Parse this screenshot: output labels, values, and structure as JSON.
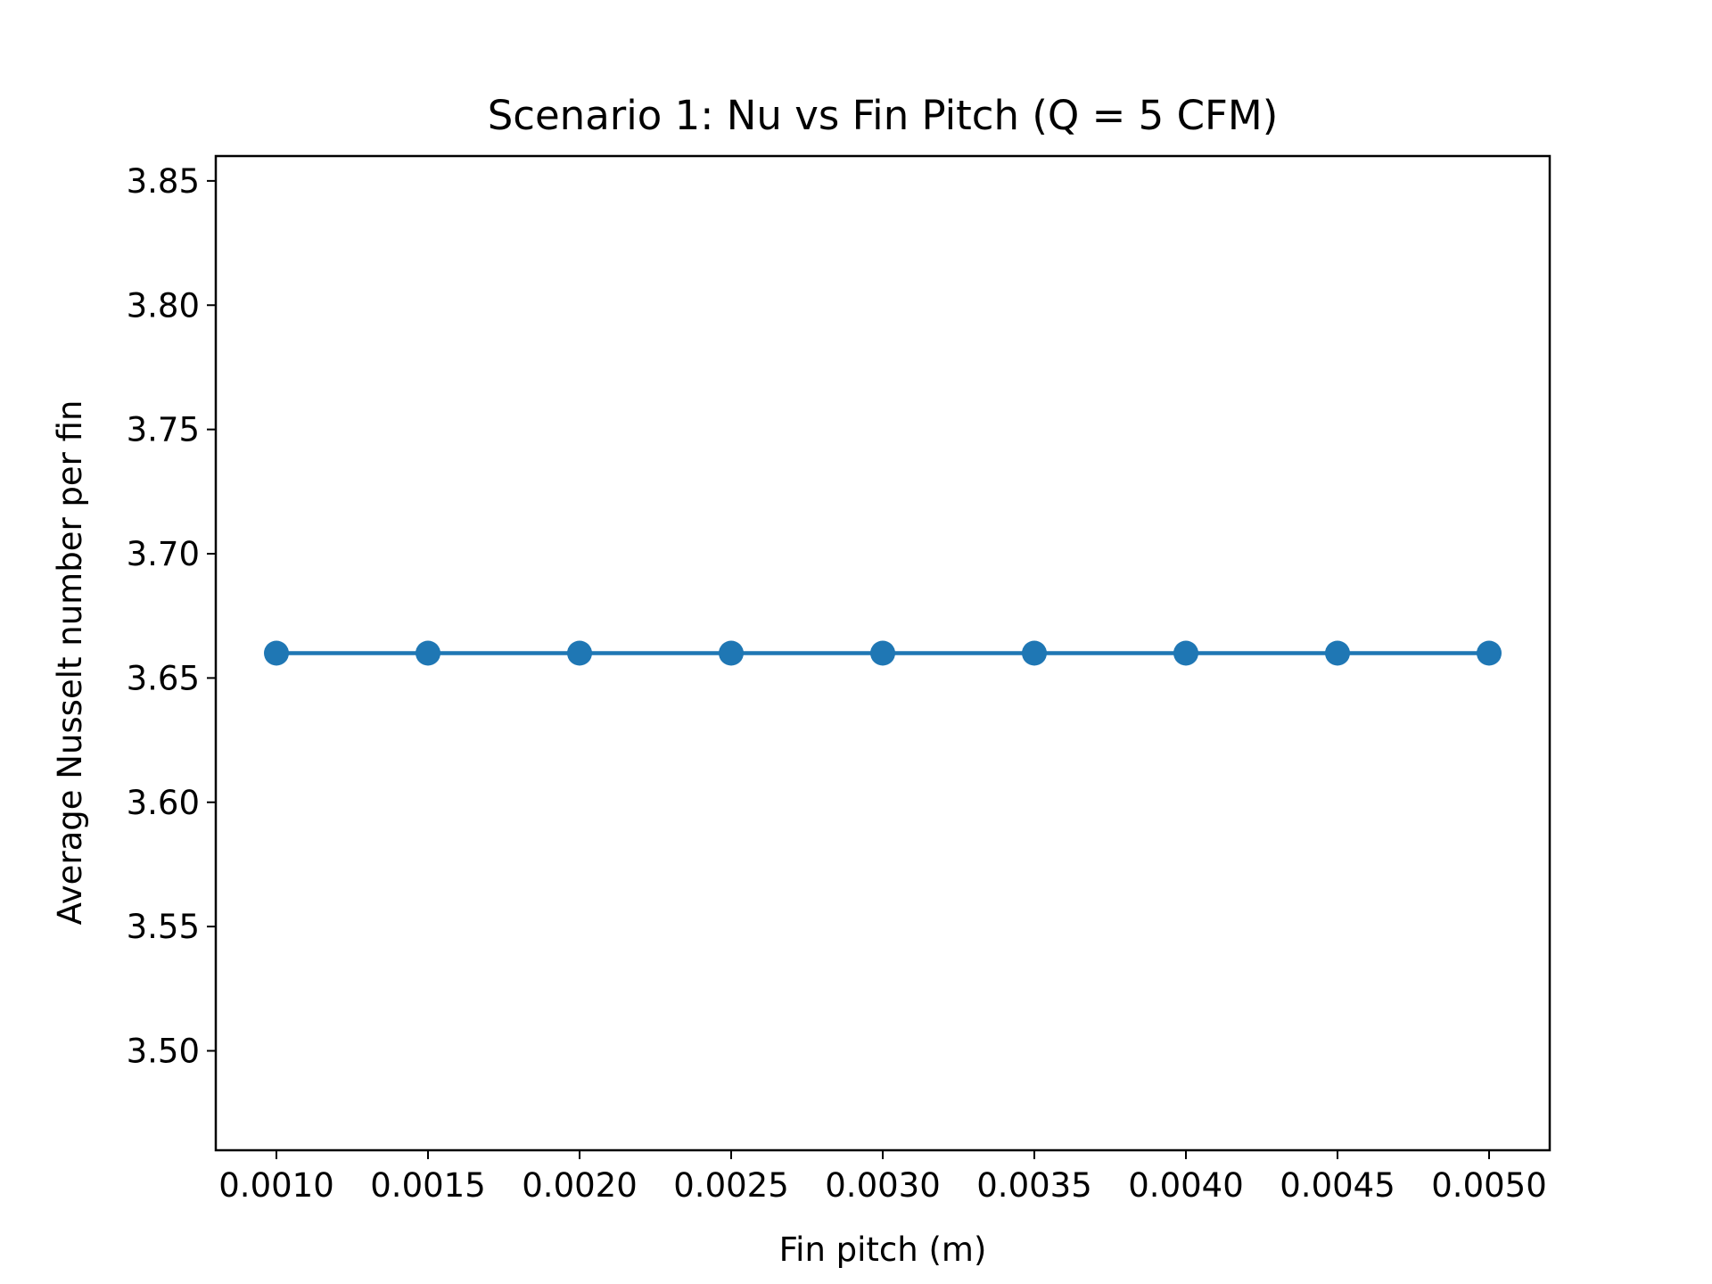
{
  "chart_data": {
    "type": "line",
    "title": "Scenario 1: Nu vs Fin Pitch (Q = 5 CFM)",
    "xlabel": "Fin pitch (m)",
    "ylabel": "Average Nusselt number per fin",
    "x": [
      0.001,
      0.0015,
      0.002,
      0.0025,
      0.003,
      0.0035,
      0.004,
      0.0045,
      0.005
    ],
    "series": [
      {
        "values": [
          3.66,
          3.66,
          3.66,
          3.66,
          3.66,
          3.66,
          3.66,
          3.66,
          3.66
        ],
        "color": "#1f77b4",
        "marker": "circle"
      }
    ],
    "xlim": [
      0.0008,
      0.0052
    ],
    "ylim": [
      3.46,
      3.86
    ],
    "x_ticks": [
      "0.0010",
      "0.0015",
      "0.0020",
      "0.0025",
      "0.0030",
      "0.0035",
      "0.0040",
      "0.0045",
      "0.0050"
    ],
    "x_tick_values": [
      0.001,
      0.0015,
      0.002,
      0.0025,
      0.003,
      0.0035,
      0.004,
      0.0045,
      0.005
    ],
    "y_ticks": [
      "3.50",
      "3.55",
      "3.60",
      "3.65",
      "3.70",
      "3.75",
      "3.80",
      "3.85"
    ],
    "y_tick_values": [
      3.5,
      3.55,
      3.6,
      3.65,
      3.7,
      3.75,
      3.8,
      3.85
    ],
    "grid": false,
    "legend": "none"
  }
}
